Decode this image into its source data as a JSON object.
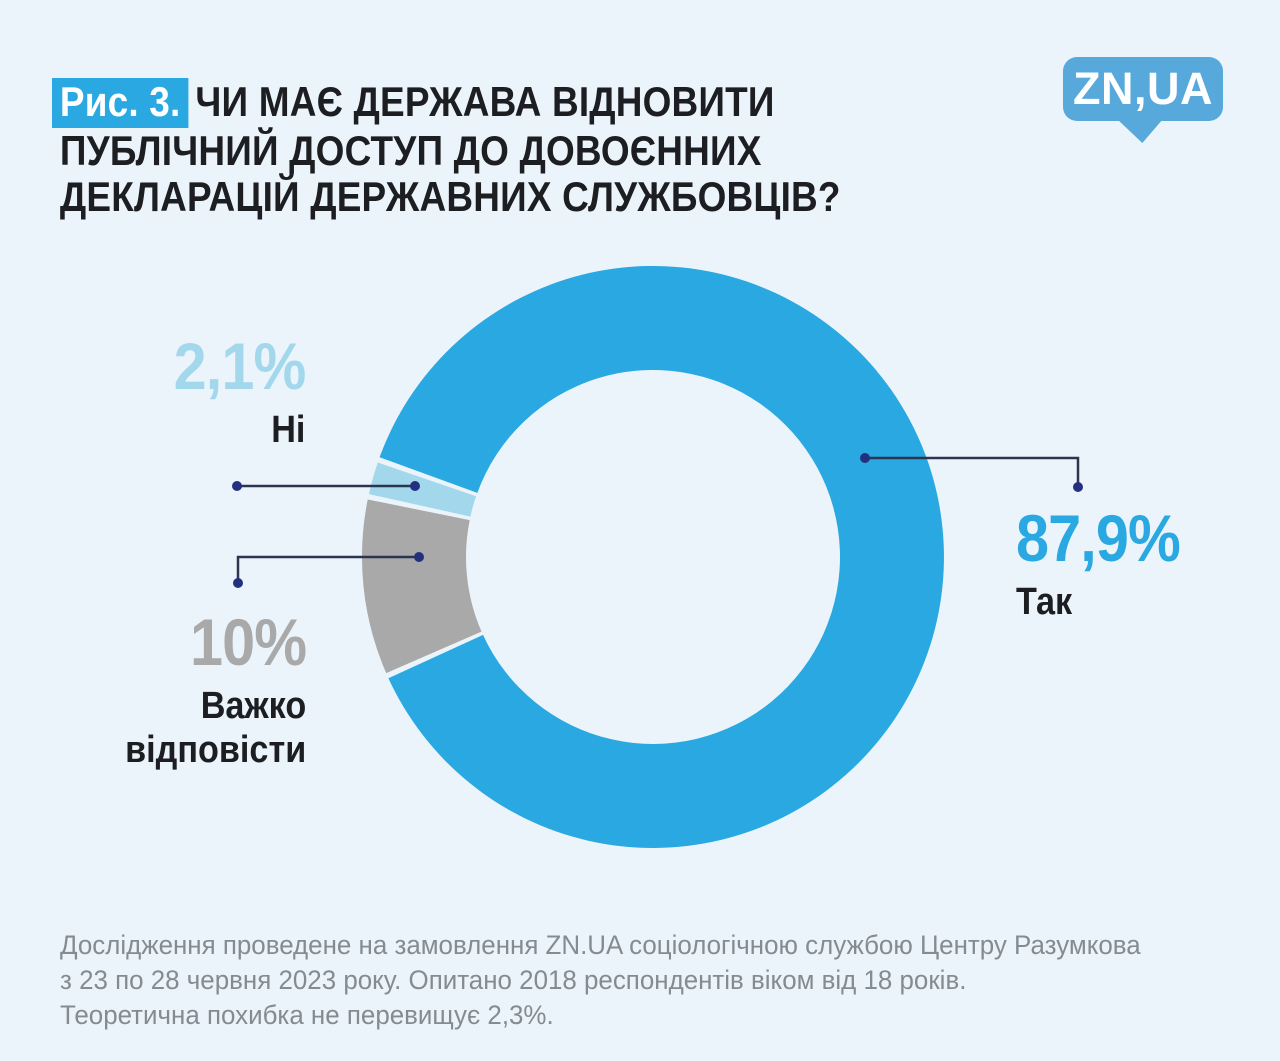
{
  "header": {
    "figure_badge": "Рис. 3.",
    "title_lines": [
      "ЧИ МАЄ ДЕРЖАВА ВІДНОВИТИ",
      "ПУБЛІЧНИЙ ДОСТУП ДО ДОВОЄННИХ",
      "ДЕКЛАРАЦІЙ ДЕРЖАВНИХ СЛУЖБОВЦІВ?"
    ],
    "logo_text": "ZN,UA"
  },
  "chart_data": {
    "type": "pie",
    "variant": "donut",
    "title": "Чи має держава відновити публічний доступ до довоєнних декларацій державних службовців?",
    "categories": [
      "Так",
      "Ні",
      "Важко відповісти"
    ],
    "values": [
      87.9,
      2.1,
      10
    ],
    "value_labels": [
      "87,9%",
      "2,1%",
      "10%"
    ],
    "colors": [
      "#29A8E1",
      "#A3D8EC",
      "#A9A9A9"
    ],
    "legend_position": "callout-labels",
    "grid": false,
    "rotation_deg": 160.5
  },
  "callouts": {
    "tak": {
      "value": "87,9%",
      "name": "Так"
    },
    "ni": {
      "value": "2,1%",
      "name": "Ні"
    },
    "vazhko": {
      "value": "10%",
      "name_line1": "Важко",
      "name_line2": "відповісти"
    }
  },
  "footer": {
    "lines": [
      "Дослідження проведене на замовлення ZN.UA соціологічною службою Центру Разумкова",
      "з 23 по 28 червня 2023 року. Опитано 2018 респондентів віком від 18 років.",
      "Теоретична похибка не перевищує 2,3%."
    ]
  },
  "colors": {
    "background": "#ECF4FB",
    "accent_blue": "#29A8E1",
    "light_blue": "#A3D8EC",
    "gray": "#A9A9A9",
    "title_text": "#1C1E21",
    "footer_text": "#848B91",
    "leader_line": "#2B3550",
    "leader_dot": "#233080",
    "logo_blue": "#57A9DC"
  }
}
